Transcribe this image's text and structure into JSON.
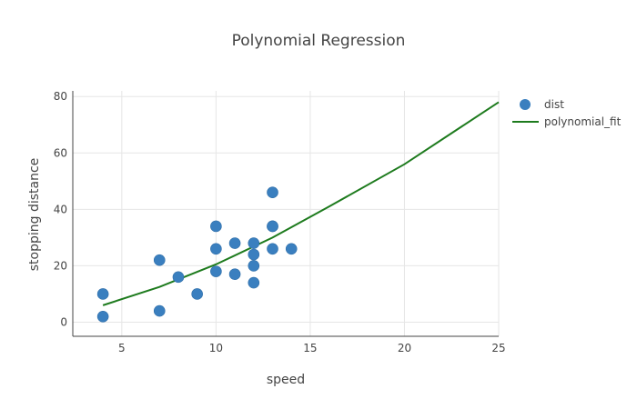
{
  "chart_data": {
    "type": "scatter",
    "title": "Polynomial Regression",
    "xlabel": "speed",
    "ylabel": "stopping distance",
    "xlim": [
      2.4,
      25
    ],
    "ylim": [
      -5,
      82
    ],
    "xticks": [
      5,
      10,
      15,
      20,
      25
    ],
    "yticks": [
      0,
      20,
      40,
      60,
      80
    ],
    "grid": true,
    "legend_position": "right",
    "series": [
      {
        "name": "dist",
        "mode": "markers",
        "color": "#3a7fbf",
        "x": [
          4,
          4,
          7,
          7,
          8,
          9,
          10,
          10,
          10,
          11,
          11,
          12,
          12,
          12,
          12,
          13,
          13,
          13,
          13,
          14
        ],
        "y": [
          2,
          10,
          4,
          22,
          16,
          10,
          18,
          26,
          34,
          17,
          28,
          14,
          20,
          24,
          28,
          26,
          34,
          34,
          46,
          26
        ]
      },
      {
        "name": "polynomial_fit",
        "mode": "line",
        "color": "#1e7b1e",
        "x": [
          4,
          7,
          10,
          13,
          16,
          20,
          25
        ],
        "y": [
          6,
          12.5,
          20.5,
          30,
          41,
          56,
          78
        ]
      }
    ]
  }
}
